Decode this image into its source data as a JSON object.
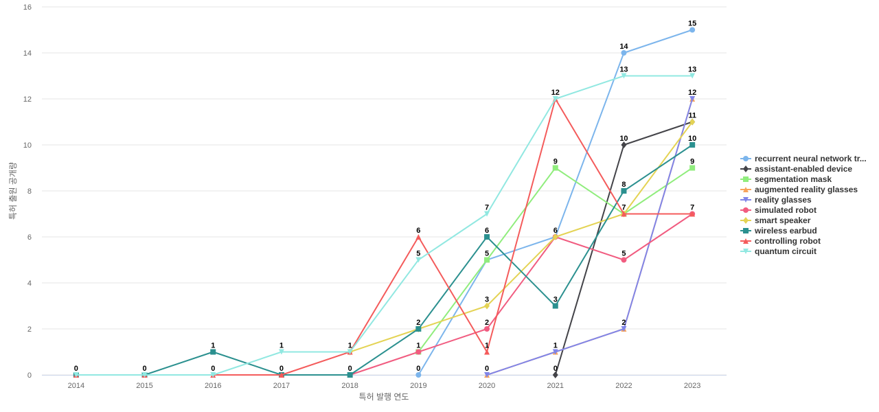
{
  "chart_data": {
    "type": "line",
    "title": "",
    "xlabel": "특허 발행 연도",
    "ylabel": "특허 출원 공개량",
    "categories": [
      "2014",
      "2015",
      "2016",
      "2017",
      "2018",
      "2019",
      "2020",
      "2021",
      "2022",
      "2023"
    ],
    "ylim": [
      0,
      16
    ],
    "yticks": [
      0,
      2,
      4,
      6,
      8,
      10,
      12,
      14,
      16
    ],
    "grid": true,
    "legend_position": "right",
    "series": [
      {
        "name": "recurrent neural network tr...",
        "color": "#7cb5ec",
        "marker": "circle",
        "values": [
          null,
          null,
          null,
          null,
          null,
          0,
          5,
          6,
          14,
          15
        ]
      },
      {
        "name": "assistant-enabled device",
        "color": "#434348",
        "marker": "diamond",
        "values": [
          null,
          null,
          null,
          null,
          null,
          null,
          null,
          0,
          10,
          11
        ]
      },
      {
        "name": "segmentation mask",
        "color": "#90ed7d",
        "marker": "square",
        "values": [
          null,
          null,
          null,
          null,
          null,
          1,
          5,
          9,
          7,
          9
        ]
      },
      {
        "name": "augmented reality glasses",
        "color": "#f7a35c",
        "marker": "triangle",
        "values": [
          null,
          null,
          null,
          null,
          null,
          null,
          0,
          1,
          2,
          12
        ]
      },
      {
        "name": "reality glasses",
        "color": "#8085e9",
        "marker": "triangle-down",
        "values": [
          null,
          null,
          null,
          null,
          null,
          null,
          0,
          1,
          2,
          12
        ]
      },
      {
        "name": "simulated robot",
        "color": "#f15c80",
        "marker": "circle",
        "values": [
          null,
          null,
          null,
          null,
          0,
          1,
          2,
          6,
          5,
          7
        ]
      },
      {
        "name": "smart speaker",
        "color": "#e4d354",
        "marker": "diamond",
        "values": [
          null,
          null,
          null,
          null,
          1,
          2,
          3,
          6,
          7,
          11
        ]
      },
      {
        "name": "wireless earbud",
        "color": "#2b908f",
        "marker": "square",
        "values": [
          0,
          0,
          1,
          0,
          0,
          2,
          6,
          3,
          8,
          10
        ]
      },
      {
        "name": "controlling robot",
        "color": "#f45b5b",
        "marker": "triangle",
        "values": [
          0,
          0,
          0,
          0,
          1,
          6,
          1,
          12,
          7,
          7
        ]
      },
      {
        "name": "quantum circuit",
        "color": "#91e8e1",
        "marker": "triangle-down",
        "values": [
          0,
          0,
          0,
          1,
          1,
          5,
          7,
          12,
          13,
          13
        ]
      }
    ],
    "data_labels": [
      {
        "x": "2014",
        "y": 0,
        "text": "0"
      },
      {
        "x": "2015",
        "y": 0,
        "text": "0"
      },
      {
        "x": "2016",
        "y": 1,
        "text": "1"
      },
      {
        "x": "2016",
        "y": 0,
        "text": "0"
      },
      {
        "x": "2017",
        "y": 1,
        "text": "1"
      },
      {
        "x": "2017",
        "y": 0,
        "text": "0"
      },
      {
        "x": "2018",
        "y": 1,
        "text": "1"
      },
      {
        "x": "2018",
        "y": 0,
        "text": "0"
      },
      {
        "x": "2019",
        "y": 6,
        "text": "6"
      },
      {
        "x": "2019",
        "y": 5,
        "text": "5"
      },
      {
        "x": "2019",
        "y": 2,
        "text": "2"
      },
      {
        "x": "2019",
        "y": 1,
        "text": "1"
      },
      {
        "x": "2019",
        "y": 0,
        "text": "0"
      },
      {
        "x": "2020",
        "y": 7,
        "text": "7"
      },
      {
        "x": "2020",
        "y": 6,
        "text": "6"
      },
      {
        "x": "2020",
        "y": 5,
        "text": "5"
      },
      {
        "x": "2020",
        "y": 3,
        "text": "3"
      },
      {
        "x": "2020",
        "y": 2,
        "text": "2"
      },
      {
        "x": "2020",
        "y": 1,
        "text": "1"
      },
      {
        "x": "2020",
        "y": 0,
        "text": "0"
      },
      {
        "x": "2021",
        "y": 12,
        "text": "12"
      },
      {
        "x": "2021",
        "y": 9,
        "text": "9"
      },
      {
        "x": "2021",
        "y": 6,
        "text": "6"
      },
      {
        "x": "2021",
        "y": 3,
        "text": "3"
      },
      {
        "x": "2021",
        "y": 1,
        "text": "1"
      },
      {
        "x": "2021",
        "y": 0,
        "text": "0"
      },
      {
        "x": "2022",
        "y": 14,
        "text": "14"
      },
      {
        "x": "2022",
        "y": 13,
        "text": "13"
      },
      {
        "x": "2022",
        "y": 10,
        "text": "10"
      },
      {
        "x": "2022",
        "y": 8,
        "text": "8"
      },
      {
        "x": "2022",
        "y": 7,
        "text": "7"
      },
      {
        "x": "2022",
        "y": 5,
        "text": "5"
      },
      {
        "x": "2022",
        "y": 2,
        "text": "2"
      },
      {
        "x": "2023",
        "y": 15,
        "text": "15"
      },
      {
        "x": "2023",
        "y": 13,
        "text": "13"
      },
      {
        "x": "2023",
        "y": 12,
        "text": "12"
      },
      {
        "x": "2023",
        "y": 11,
        "text": "11"
      },
      {
        "x": "2023",
        "y": 10,
        "text": "10"
      },
      {
        "x": "2023",
        "y": 9,
        "text": "9"
      },
      {
        "x": "2023",
        "y": 7,
        "text": "7"
      }
    ]
  }
}
